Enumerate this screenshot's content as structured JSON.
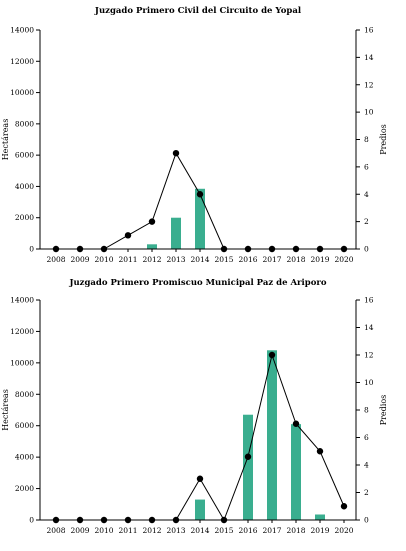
{
  "chart_data": [
    {
      "type": "bar+line",
      "title": "Juzgado Primero Civil del Circuito de Yopal",
      "categories": [
        "2008",
        "2009",
        "2010",
        "2011",
        "2012",
        "2013",
        "2014",
        "2015",
        "2016",
        "2017",
        "2018",
        "2019",
        "2020"
      ],
      "series": [
        {
          "name": "Hectáreas",
          "axis": "left",
          "type": "bar",
          "color": "#3aae8f",
          "values": [
            0,
            0,
            0,
            0,
            300,
            2000,
            3850,
            0,
            0,
            0,
            0,
            0,
            0
          ]
        },
        {
          "name": "Predios",
          "axis": "right",
          "type": "line",
          "color": "#000000",
          "values": [
            0,
            0,
            0,
            1,
            2,
            7,
            4,
            0,
            0,
            0,
            0,
            0,
            0
          ]
        }
      ],
      "ylabel": "Hectáreas",
      "y2label": "Predios",
      "ylim": [
        0,
        14000
      ],
      "y2lim": [
        0,
        16
      ],
      "yticks": [
        "0",
        "2000",
        "4000",
        "6000",
        "8000",
        "10000",
        "12000",
        "14000"
      ],
      "y2ticks": [
        "0",
        "2",
        "4",
        "6",
        "8",
        "10",
        "12",
        "14",
        "16"
      ],
      "grid": false
    },
    {
      "type": "bar+line",
      "title": "Juzgado Primero Promiscuo Municipal Paz de Ariporo",
      "categories": [
        "2008",
        "2009",
        "2010",
        "2011",
        "2012",
        "2013",
        "2014",
        "2015",
        "2016",
        "2017",
        "2018",
        "2019",
        "2020"
      ],
      "series": [
        {
          "name": "Hectáreas",
          "axis": "left",
          "type": "bar",
          "color": "#3aae8f",
          "values": [
            0,
            0,
            0,
            0,
            0,
            0,
            1300,
            0,
            6700,
            10800,
            6100,
            350,
            0
          ]
        },
        {
          "name": "Predios",
          "axis": "right",
          "type": "line",
          "color": "#000000",
          "values": [
            0,
            0,
            0,
            0,
            0,
            0,
            3,
            0,
            4.6,
            12,
            7,
            5,
            1
          ]
        }
      ],
      "ylabel": "Hectáreas",
      "y2label": "Predios",
      "ylim": [
        0,
        14000
      ],
      "y2lim": [
        0,
        16
      ],
      "yticks": [
        "0",
        "2000",
        "4000",
        "6000",
        "8000",
        "10000",
        "12000",
        "14000"
      ],
      "y2ticks": [
        "0",
        "2",
        "4",
        "6",
        "8",
        "10",
        "12",
        "14",
        "16"
      ],
      "grid": false
    }
  ]
}
